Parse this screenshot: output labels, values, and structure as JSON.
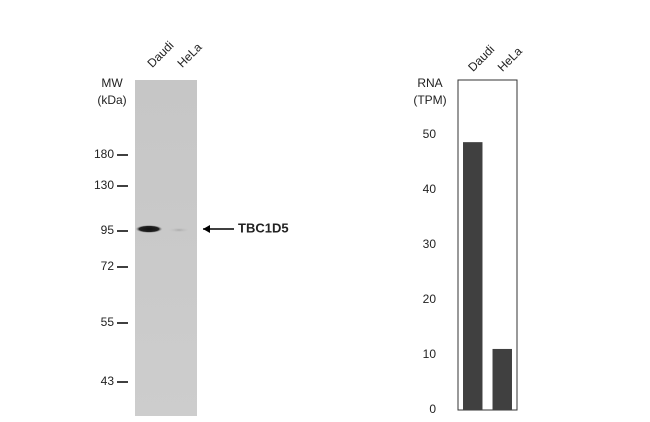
{
  "blot": {
    "lanes": [
      "Daudi",
      "HeLa"
    ],
    "mw_label": [
      "MW",
      "(kDa)"
    ],
    "markers": [
      "180",
      "130",
      "95",
      "72",
      "55",
      "43"
    ],
    "band_label": "TBC1D5"
  },
  "chart_data": {
    "type": "bar",
    "y_label": [
      "RNA",
      "(TPM)"
    ],
    "categories": [
      "Daudi",
      "HeLa"
    ],
    "values": [
      48.7,
      11.1
    ],
    "color": "#404040",
    "ylim": [
      0,
      60
    ],
    "yticks": [
      0,
      10,
      20,
      30,
      40,
      50
    ]
  }
}
